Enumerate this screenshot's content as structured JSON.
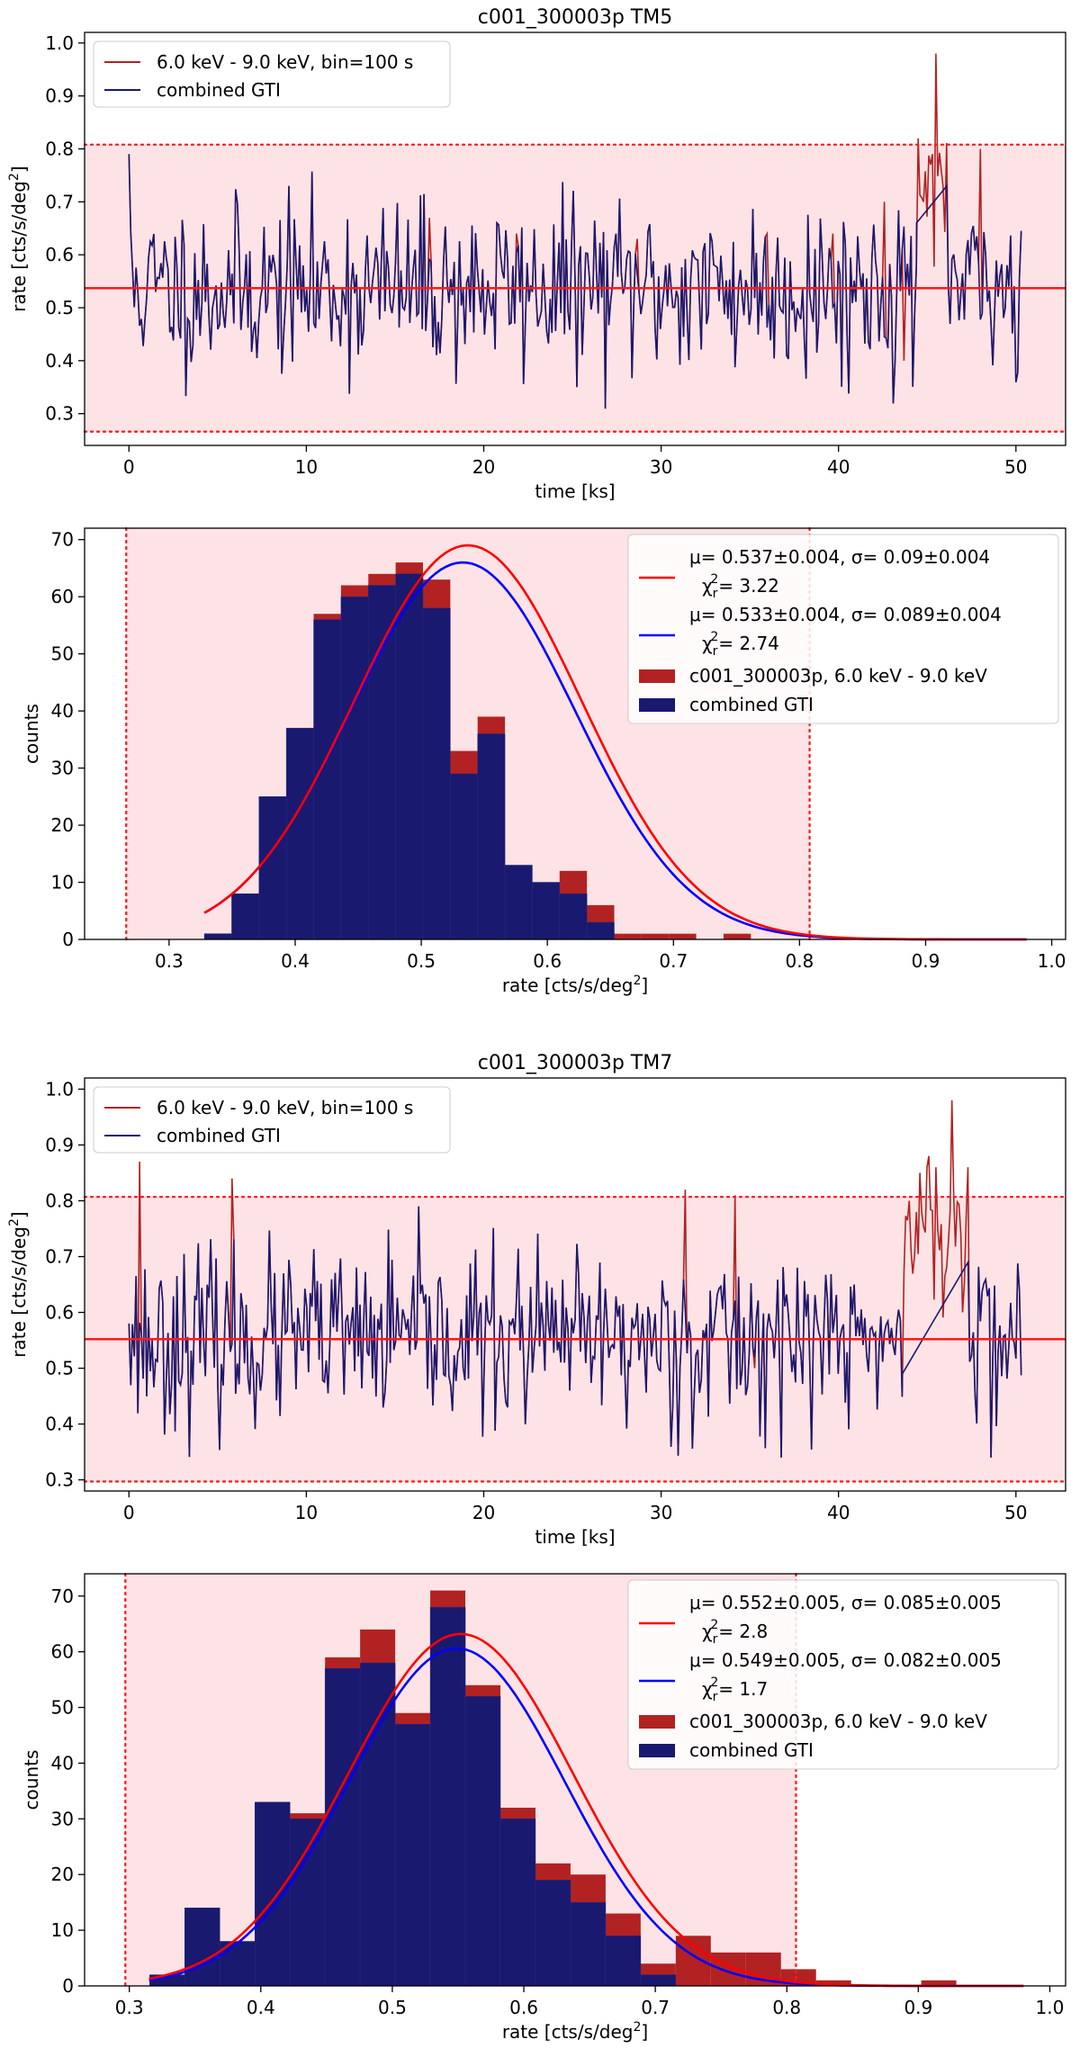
{
  "colors": {
    "band": "#fde3e5",
    "red_line": "#ff1a1a",
    "dark_red": "#b22222",
    "navy": "#191970",
    "fit_red": "#ff0000",
    "fit_blue": "#0000ff"
  },
  "chart_data": [
    {
      "id": "lc_tm5",
      "type": "line",
      "title": "c001_300003p TM5",
      "xlabel": "time [ks]",
      "ylabel_main": "rate [cts/s/deg",
      "ylabel_sup": "2",
      "ylabel_end": "]",
      "xlim": [
        -2.5,
        52.8
      ],
      "ylim": [
        0.24,
        1.02
      ],
      "xticks": [
        0,
        10,
        20,
        30,
        40,
        50
      ],
      "yticks": [
        0.3,
        0.4,
        0.5,
        0.6,
        0.7,
        0.8,
        0.9,
        1.0
      ],
      "ytick_labels": [
        "0.3",
        "0.4",
        "0.5",
        "0.6",
        "0.7",
        "0.8",
        "0.9",
        "1.0"
      ],
      "mean": 0.537,
      "band": [
        0.266,
        0.808
      ],
      "legend": [
        "6.0 keV - 9.0 keV, bin=100 s",
        "combined GTI"
      ],
      "series": [
        {
          "name": "6.0 keV - 9.0 keV, bin=100 s",
          "time_range": [
            0.0,
            50.3
          ],
          "mean": 0.537,
          "std": 0.085,
          "seed": 11,
          "spikes": [
            [
              16.9,
              0.67
            ],
            [
              21.8,
              0.64
            ],
            [
              28.7,
              0.63
            ],
            [
              36.0,
              0.64
            ],
            [
              39.7,
              0.64
            ],
            [
              42.6,
              0.7
            ],
            [
              43.7,
              0.4
            ],
            [
              44.5,
              0.82
            ],
            [
              44.8,
              0.7
            ],
            [
              45.3,
              0.79
            ],
            [
              45.5,
              0.98
            ],
            [
              45.9,
              0.73
            ],
            [
              48.0,
              0.8
            ]
          ]
        },
        {
          "name": "combined GTI",
          "time_range": [
            0.0,
            50.3
          ],
          "mean": 0.537,
          "std": 0.085,
          "seed": 11,
          "gaps": [
            [
              44.4,
              46.1
            ]
          ],
          "gap_ends": [
            0.66,
            0.73
          ],
          "start_value": 0.79
        }
      ]
    },
    {
      "id": "hist_tm5",
      "type": "bar",
      "xlabel_main": "rate [cts/s/deg",
      "xlabel_sup": "2",
      "xlabel_end": "]",
      "ylabel": "counts",
      "xlim": [
        0.233,
        1.011
      ],
      "ylim": [
        0,
        72
      ],
      "xticks": [
        0.3,
        0.4,
        0.5,
        0.6,
        0.7,
        0.8,
        0.9,
        1.0
      ],
      "xtick_labels": [
        "0.3",
        "0.4",
        "0.5",
        "0.6",
        "0.7",
        "0.8",
        "0.9",
        "1.0"
      ],
      "yticks": [
        0,
        10,
        20,
        30,
        40,
        50,
        60,
        70
      ],
      "band": [
        0.266,
        0.808
      ],
      "bin_start": 0.328,
      "bin_width": 0.02167,
      "series": [
        {
          "name": "c001_300003p, 6.0 keV - 9.0 keV",
          "values": [
            1,
            8,
            25,
            37,
            57,
            62,
            64,
            66,
            63,
            33,
            39,
            13,
            10,
            12,
            6,
            1,
            1,
            1,
            0,
            1
          ]
        },
        {
          "name": "combined GTI",
          "values": [
            1,
            8,
            25,
            37,
            56,
            60,
            62,
            64,
            58,
            29,
            36,
            13,
            10,
            8,
            3,
            0,
            0,
            0,
            0,
            0
          ]
        }
      ],
      "fits": [
        {
          "name": "fit_all",
          "mu": 0.537,
          "sigma": 0.09,
          "amp": 69,
          "x_range": [
            0.328,
            0.98
          ]
        },
        {
          "name": "fit_gti",
          "mu": 0.533,
          "sigma": 0.089,
          "amp": 66,
          "x_range": [
            0.328,
            0.98
          ]
        }
      ],
      "legend": [
        {
          "line1": "μ= 0.537±0.004, σ= 0.09±0.004",
          "line2": "χ",
          "line2_sub": "r",
          "line2_sup": "2",
          "line2_end": "= 3.22"
        },
        {
          "line1": "μ= 0.533±0.004, σ= 0.089±0.004",
          "line2": "χ",
          "line2_sub": "r",
          "line2_sup": "2",
          "line2_end": "= 2.74"
        },
        {
          "label": "c001_300003p, 6.0 keV - 9.0 keV"
        },
        {
          "label": "combined GTI"
        }
      ]
    },
    {
      "id": "lc_tm7",
      "type": "line",
      "title": "c001_300003p TM7",
      "xlabel": "time [ks]",
      "ylabel_main": "rate [cts/s/deg",
      "ylabel_sup": "2",
      "ylabel_end": "]",
      "xlim": [
        -2.5,
        52.8
      ],
      "ylim": [
        0.28,
        1.02
      ],
      "xticks": [
        0,
        10,
        20,
        30,
        40,
        50
      ],
      "yticks": [
        0.3,
        0.4,
        0.5,
        0.6,
        0.7,
        0.8,
        0.9,
        1.0
      ],
      "ytick_labels": [
        "0.3",
        "0.4",
        "0.5",
        "0.6",
        "0.7",
        "0.8",
        "0.9",
        "1.0"
      ],
      "mean": 0.552,
      "band": [
        0.297,
        0.807
      ],
      "legend": [
        "6.0 keV - 9.0 keV, bin=100 s",
        "combined GTI"
      ],
      "series": [
        {
          "name": "6.0 keV - 9.0 keV, bin=100 s",
          "time_range": [
            0.0,
            50.3
          ],
          "mean": 0.552,
          "std": 0.082,
          "seed": 23,
          "spikes": [
            [
              0.6,
              0.87
            ],
            [
              5.8,
              0.84
            ],
            [
              31.4,
              0.82
            ],
            [
              34.2,
              0.81
            ],
            [
              35.3,
              0.5
            ],
            [
              44.0,
              0.8
            ],
            [
              44.6,
              0.85
            ],
            [
              45.1,
              0.88
            ],
            [
              45.6,
              0.75
            ],
            [
              46.4,
              0.98
            ],
            [
              47.0,
              0.6
            ]
          ]
        },
        {
          "name": "combined GTI",
          "time_range": [
            0.0,
            50.3
          ],
          "mean": 0.552,
          "std": 0.082,
          "seed": 23,
          "gaps": [
            [
              43.6,
              47.3
            ]
          ],
          "gap_ends": [
            0.49,
            0.69
          ],
          "start_value": 0.58
        }
      ]
    },
    {
      "id": "hist_tm7",
      "type": "bar",
      "xlabel_main": "rate [cts/s/deg",
      "xlabel_sup": "2",
      "xlabel_end": "]",
      "ylabel": "counts",
      "xlim": [
        0.266,
        1.012
      ],
      "ylim": [
        0,
        74
      ],
      "xticks": [
        0.3,
        0.4,
        0.5,
        0.6,
        0.7,
        0.8,
        0.9,
        1.0
      ],
      "xtick_labels": [
        "0.3",
        "0.4",
        "0.5",
        "0.6",
        "0.7",
        "0.8",
        "0.9",
        "1.0"
      ],
      "yticks": [
        0,
        10,
        20,
        30,
        40,
        50,
        60,
        70
      ],
      "band": [
        0.297,
        0.807
      ],
      "bin_start": 0.3155,
      "bin_width": 0.02667,
      "series": [
        {
          "name": "c001_300003p, 6.0 keV - 9.0 keV",
          "values": [
            2,
            14,
            8,
            33,
            31,
            59,
            64,
            49,
            71,
            54,
            32,
            22,
            20,
            13,
            4,
            9,
            6,
            6,
            3,
            1,
            0,
            0,
            1
          ]
        },
        {
          "name": "combined GTI",
          "values": [
            2,
            14,
            8,
            33,
            30,
            57,
            58,
            47,
            68,
            52,
            30,
            19,
            15,
            9,
            2,
            0,
            0,
            0,
            0,
            0,
            0,
            0,
            0
          ]
        }
      ],
      "fits": [
        {
          "name": "fit_all",
          "mu": 0.552,
          "sigma": 0.085,
          "amp": 63.2,
          "x_range": [
            0.315,
            0.98
          ]
        },
        {
          "name": "fit_gti",
          "mu": 0.549,
          "sigma": 0.082,
          "amp": 60.6,
          "x_range": [
            0.315,
            0.98
          ]
        }
      ],
      "legend": [
        {
          "line1": "μ= 0.552±0.005, σ= 0.085±0.005",
          "line2": "χ",
          "line2_sub": "r",
          "line2_sup": "2",
          "line2_end": "= 2.8"
        },
        {
          "line1": "μ= 0.549±0.005, σ= 0.082±0.005",
          "line2": "χ",
          "line2_sub": "r",
          "line2_sup": "2",
          "line2_end": "= 1.7"
        },
        {
          "label": "c001_300003p, 6.0 keV - 9.0 keV"
        },
        {
          "label": "combined GTI"
        }
      ]
    }
  ]
}
